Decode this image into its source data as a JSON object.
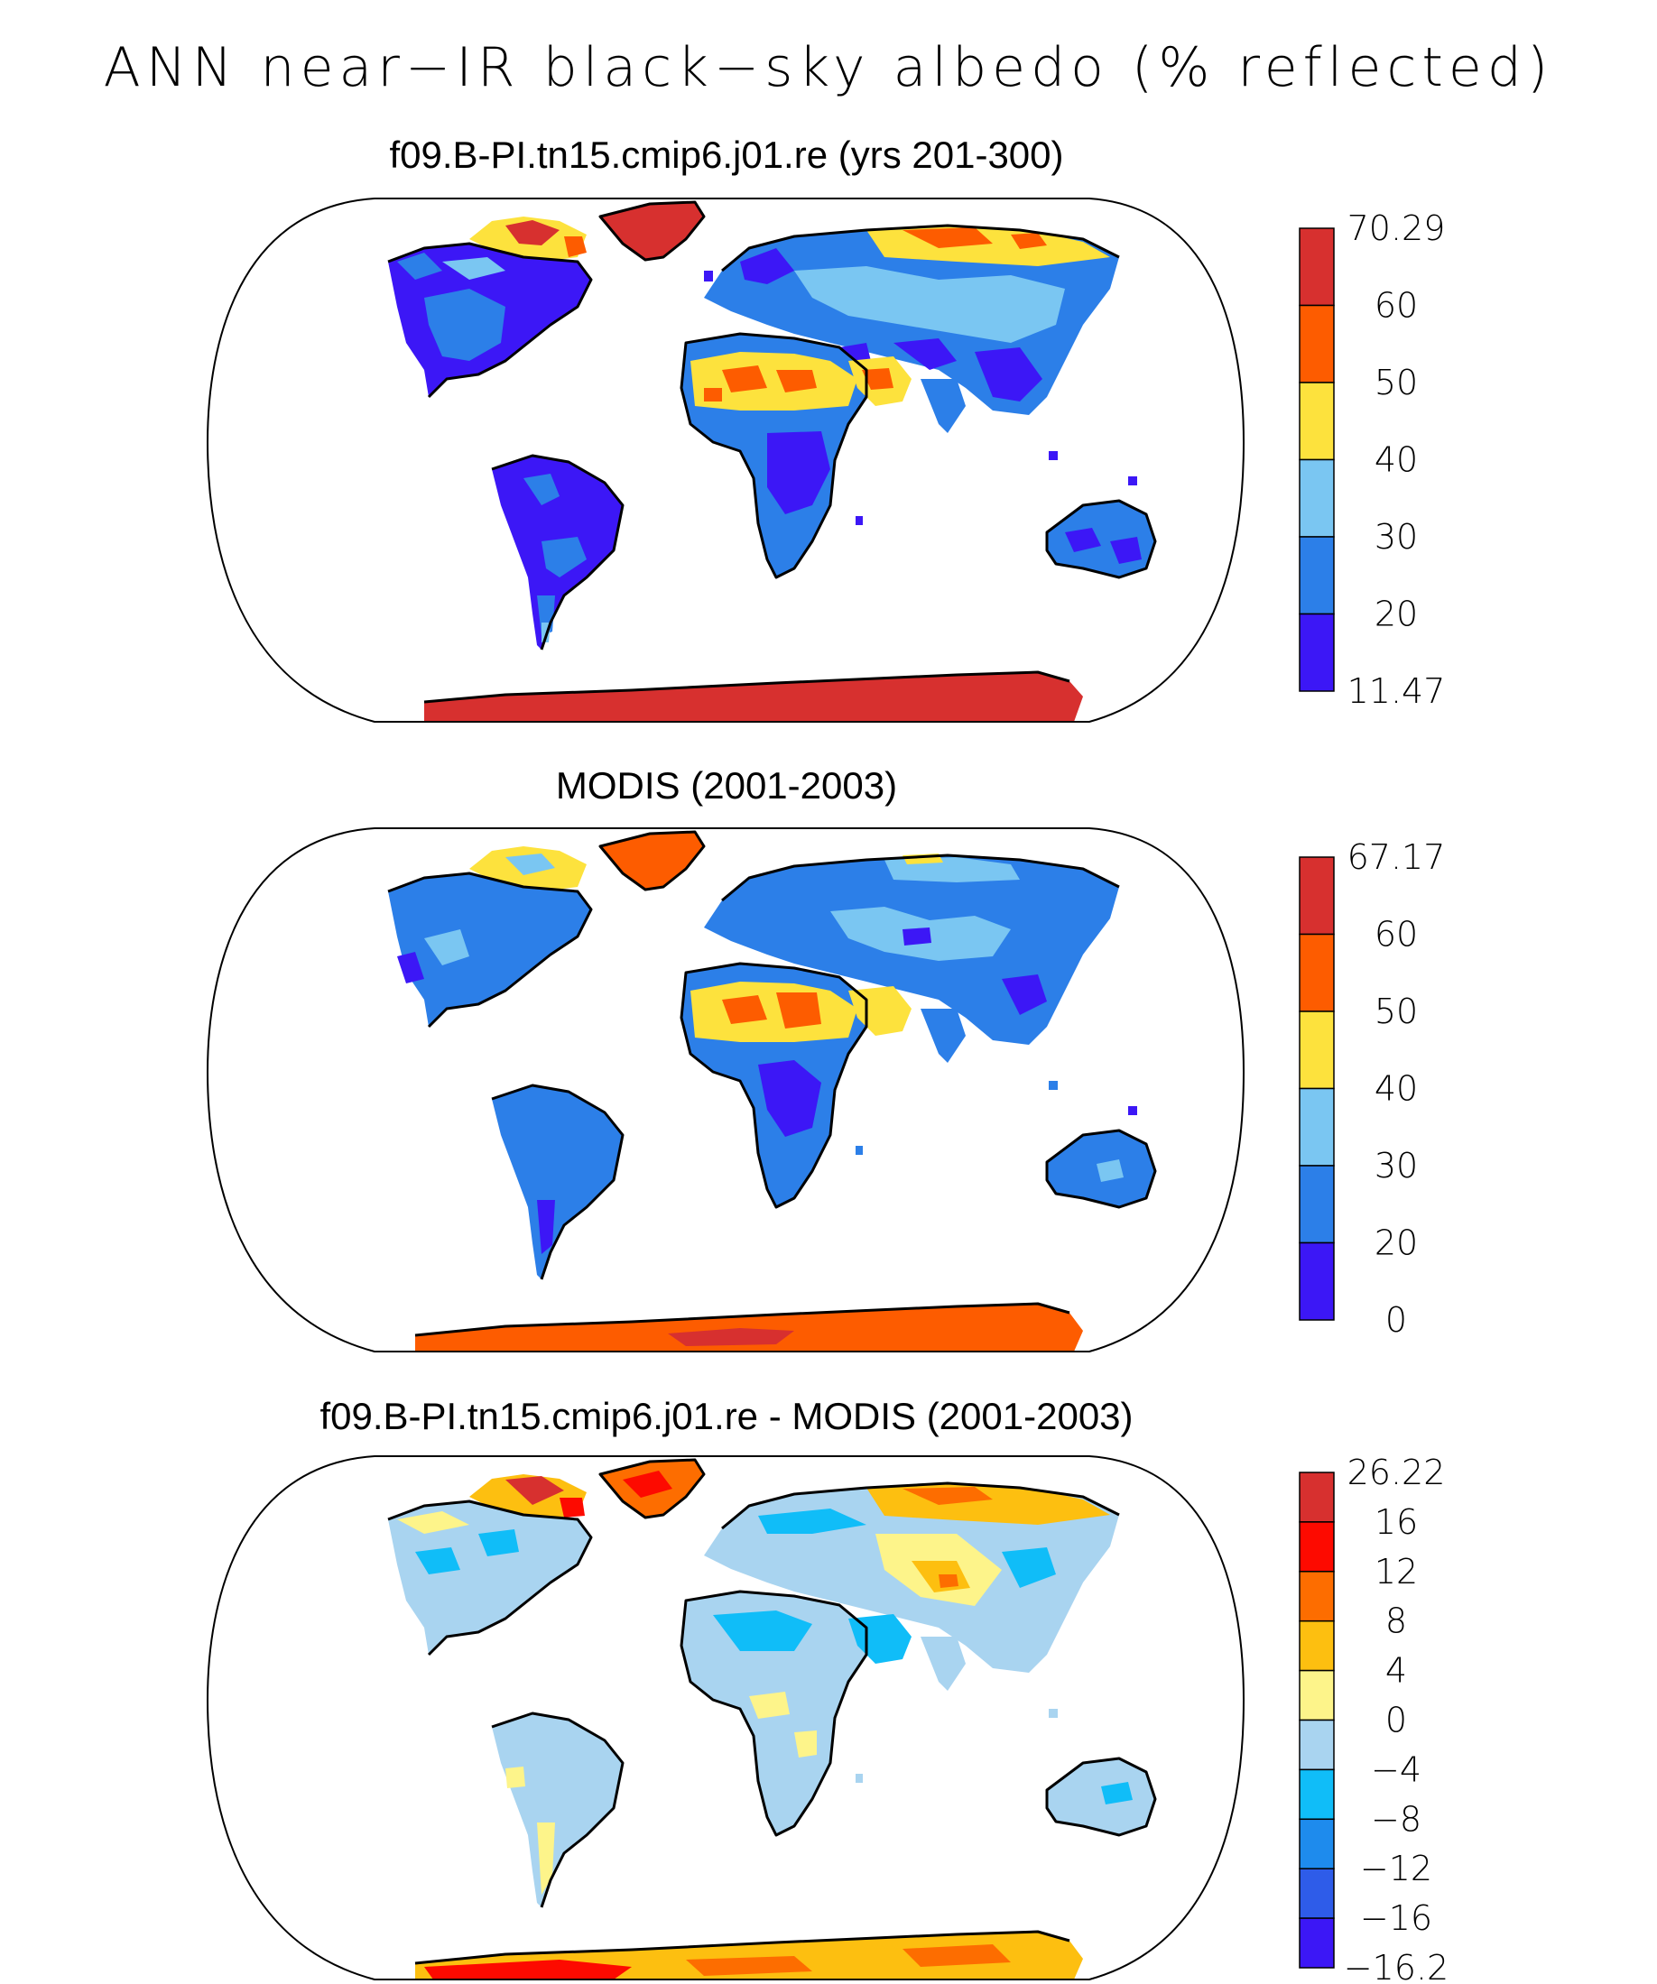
{
  "title": "ANN near−IR black−sky albedo (% reflected)",
  "panels": [
    {
      "title": "f09.B-PI.tn15.cmip6.j01.re (yrs 201-300)",
      "colorbar": {
        "labels": [
          "70.29",
          "60",
          "50",
          "40",
          "30",
          "20",
          "11.47"
        ],
        "colors": [
          "#d7302f",
          "#fd5c00",
          "#fde23d",
          "#7ac6f2",
          "#2c7fe8",
          "#3c17f6"
        ]
      }
    },
    {
      "title": "MODIS (2001-2003)",
      "colorbar": {
        "labels": [
          "67.17",
          "60",
          "50",
          "40",
          "30",
          "20",
          "0"
        ],
        "colors": [
          "#d7302f",
          "#fd5c00",
          "#fde23d",
          "#7ac6f2",
          "#2c7fe8",
          "#3c17f6"
        ]
      }
    },
    {
      "title": "f09.B-PI.tn15.cmip6.j01.re - MODIS (2001-2003)",
      "colorbar": {
        "labels": [
          "26.22",
          "16",
          "12",
          "8",
          "4",
          "0",
          "−4",
          "−8",
          "−12",
          "−16",
          "−16.2"
        ],
        "colors": [
          "#d7302f",
          "#fd0a00",
          "#fd6d00",
          "#fdbf10",
          "#fdf48a",
          "#a9d4f0",
          "#10bdf8",
          "#1e8bed",
          "#2e5ce9",
          "#3c17f6"
        ]
      }
    }
  ]
}
